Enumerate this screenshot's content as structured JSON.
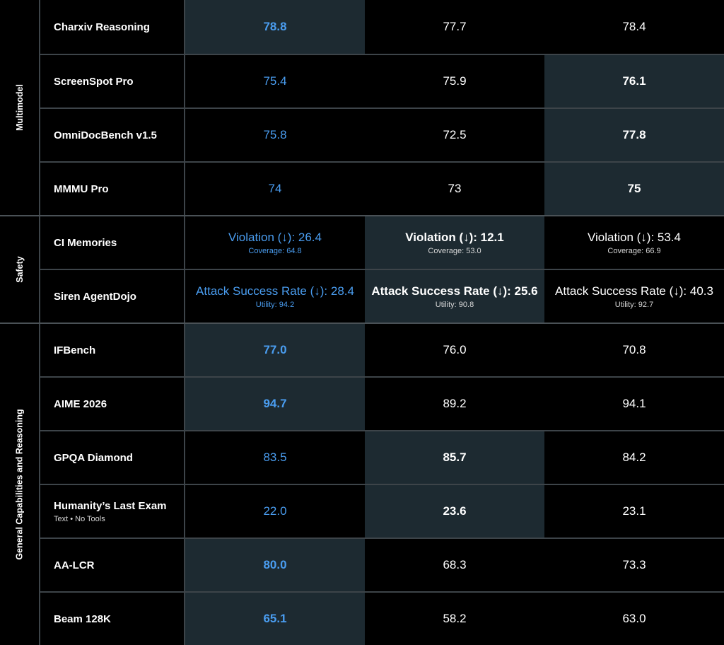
{
  "groups": [
    {
      "label": "Multimodel"
    },
    {
      "label": "Safety"
    },
    {
      "label": "General Capabilities and Reasoning"
    }
  ],
  "rows": [
    {
      "name": "Charxiv Reasoning",
      "subtitle": "",
      "values": [
        {
          "v": "78.8",
          "best": true
        },
        {
          "v": "77.7"
        },
        {
          "v": "78.4"
        }
      ]
    },
    {
      "name": "ScreenSpot Pro",
      "subtitle": "",
      "values": [
        {
          "v": "75.4"
        },
        {
          "v": "75.9"
        },
        {
          "v": "76.1",
          "best": true
        }
      ]
    },
    {
      "name": "OmniDocBench v1.5",
      "subtitle": "",
      "values": [
        {
          "v": "75.8"
        },
        {
          "v": "72.5"
        },
        {
          "v": "77.8",
          "best": true
        }
      ]
    },
    {
      "name": "MMMU Pro",
      "subtitle": "",
      "values": [
        {
          "v": "74"
        },
        {
          "v": "73"
        },
        {
          "v": "75",
          "best": true
        }
      ]
    },
    {
      "name": "CI Memories",
      "subtitle": "",
      "values": [
        {
          "v": "Violation (↓): 26.4",
          "sub": "Coverage: 64.8"
        },
        {
          "v": "Violation (↓): 12.1",
          "sub": "Coverage: 53.0",
          "best": true
        },
        {
          "v": "Violation (↓): 53.4",
          "sub": "Coverage: 66.9"
        }
      ]
    },
    {
      "name": "Siren AgentDojo",
      "subtitle": "",
      "values": [
        {
          "v": "Attack Success Rate (↓): 28.4",
          "sub": "Utility: 94.2"
        },
        {
          "v": "Attack Success Rate (↓): 25.6",
          "sub": "Utility: 90.8",
          "best": true
        },
        {
          "v": "Attack Success Rate (↓): 40.3",
          "sub": "Utility: 92.7"
        }
      ]
    },
    {
      "name": "IFBench",
      "subtitle": "",
      "values": [
        {
          "v": "77.0",
          "best": true
        },
        {
          "v": "76.0"
        },
        {
          "v": "70.8"
        }
      ]
    },
    {
      "name": "AIME 2026",
      "subtitle": "",
      "values": [
        {
          "v": "94.7",
          "best": true
        },
        {
          "v": "89.2"
        },
        {
          "v": "94.1"
        }
      ]
    },
    {
      "name": "GPQA Diamond",
      "subtitle": "",
      "values": [
        {
          "v": "83.5"
        },
        {
          "v": "85.7",
          "best": true
        },
        {
          "v": "84.2"
        }
      ]
    },
    {
      "name": "Humanity’s Last Exam",
      "subtitle": "Text • No Tools",
      "values": [
        {
          "v": "22.0"
        },
        {
          "v": "23.6",
          "best": true
        },
        {
          "v": "23.1"
        }
      ]
    },
    {
      "name": "AA-LCR",
      "subtitle": "",
      "values": [
        {
          "v": "80.0",
          "best": true
        },
        {
          "v": "68.3"
        },
        {
          "v": "73.3"
        }
      ]
    },
    {
      "name": "Beam 128K",
      "subtitle": "",
      "values": [
        {
          "v": "65.1",
          "best": true
        },
        {
          "v": "58.2"
        },
        {
          "v": "63.0"
        }
      ]
    }
  ],
  "colors": {
    "background": "#000000",
    "highlight": "#1d2a31",
    "accent": "#4a9df0",
    "grid": "#3d4449"
  }
}
